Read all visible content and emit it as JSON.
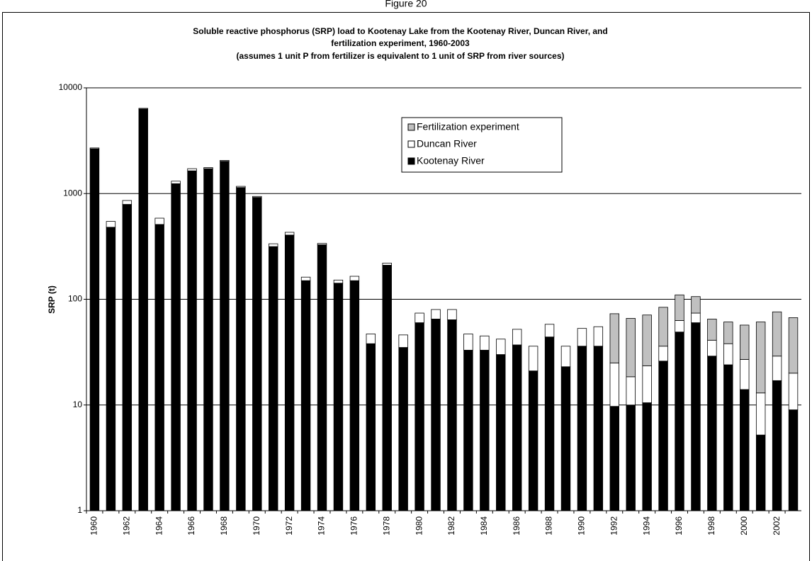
{
  "figure_label": "Figure 20",
  "chart_data": {
    "type": "stacked-bar",
    "title": [
      "Soluble reactive phosphorus (SRP) load to Kootenay Lake from the Kootenay River, Duncan River, and",
      "fertilization experiment, 1960-2003"
    ],
    "subtitle": "(assumes 1 unit P from fertilizer is equivalent to 1 unit of SRP from river sources)",
    "y_label": "SRP (t)",
    "categories": [
      "1960",
      null,
      "1962",
      null,
      "1964",
      null,
      "1966",
      null,
      "1968",
      null,
      "1970",
      null,
      "1972",
      null,
      "1974",
      null,
      "1976",
      null,
      "1978",
      null,
      "1980",
      null,
      "1982",
      null,
      "1984",
      null,
      "1986",
      null,
      "1988",
      null,
      "1990",
      null,
      "1992",
      null,
      "1994",
      null,
      "1996",
      null,
      "1998",
      null,
      "2000",
      null,
      "2002",
      null
    ],
    "series": [
      {
        "name": "Kootenay River",
        "color": "#000000",
        "values": [
          2650,
          480,
          790,
          6300,
          510,
          1240,
          1640,
          1720,
          2020,
          1140,
          920,
          315,
          405,
          150,
          328,
          142,
          150,
          38,
          210,
          35,
          60,
          65,
          64,
          33,
          33,
          30,
          37,
          21,
          44,
          23,
          36,
          36,
          9.7,
          10,
          10.5,
          26,
          49,
          60,
          29,
          24,
          14,
          5.2,
          17,
          9
        ]
      },
      {
        "name": "Duncan River",
        "color": "#ffffff",
        "values": [
          50,
          65,
          70,
          100,
          75,
          70,
          80,
          40,
          40,
          30,
          20,
          20,
          25,
          12,
          10,
          10,
          15,
          9,
          10,
          11,
          14,
          15,
          16,
          14,
          12,
          12,
          15,
          15,
          14,
          13,
          17,
          19,
          15.3,
          8.5,
          13,
          10,
          14,
          14,
          12,
          14,
          13,
          7.8,
          12,
          11
        ]
      },
      {
        "name": "Fertilization experiment",
        "color": "#c0c0c0",
        "values": [
          0,
          0,
          0,
          0,
          0,
          0,
          0,
          0,
          0,
          0,
          0,
          0,
          0,
          0,
          0,
          0,
          0,
          0,
          0,
          0,
          0,
          0,
          0,
          0,
          0,
          0,
          0,
          0,
          0,
          0,
          0,
          0,
          48,
          47.5,
          47.5,
          48,
          47,
          32,
          24,
          23,
          30,
          48,
          47,
          47
        ]
      }
    ],
    "log_y": true,
    "ylim": [
      1,
      10000
    ],
    "yticks": [
      1,
      10,
      100,
      1000,
      10000
    ],
    "grid": true,
    "legend": "top-center"
  }
}
